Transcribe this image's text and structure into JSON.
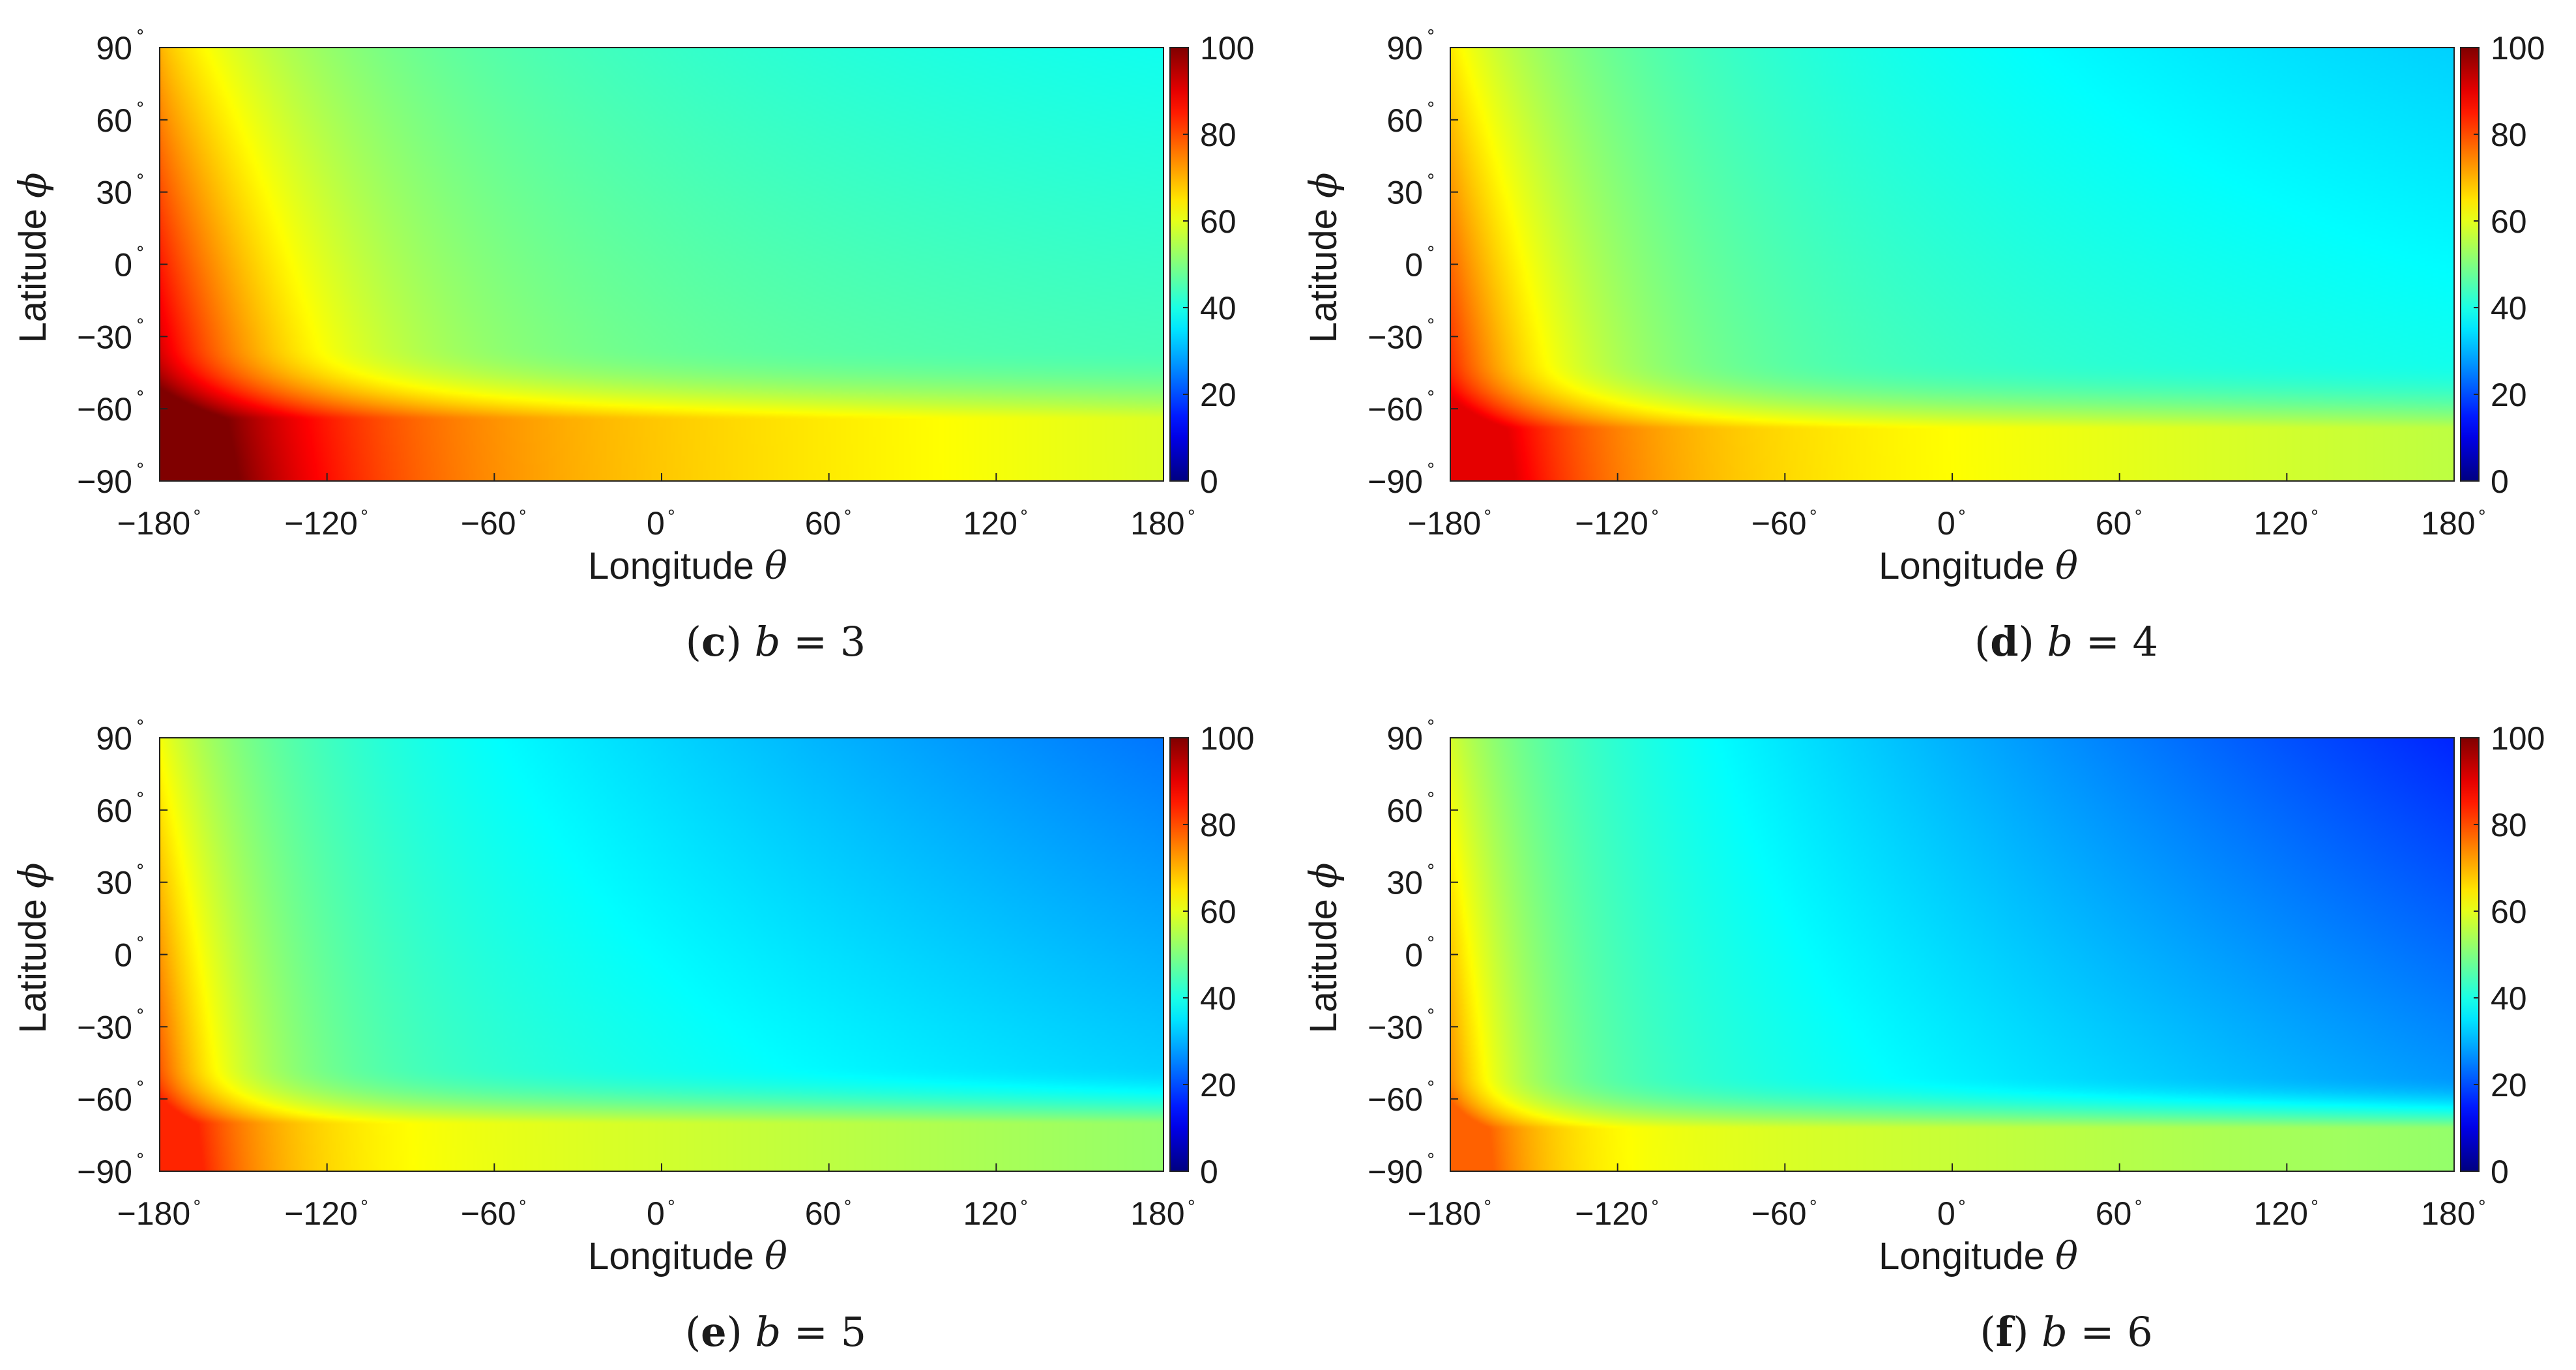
{
  "colormap": "jet",
  "chart_data": [
    {
      "type": "heatmap",
      "panel": "c",
      "caption_letter": "c",
      "caption_var": "b",
      "caption_eq": "= 3",
      "xlabel": "Longitude",
      "xlabel_symbol": "θ",
      "ylabel": "Latitude",
      "ylabel_symbol": "ϕ",
      "xlim": [
        -180,
        180
      ],
      "ylim": [
        -90,
        90
      ],
      "clim": [
        0,
        100
      ],
      "colorbar_ticks": [
        "0",
        "20",
        "40",
        "60",
        "80",
        "100"
      ],
      "field": {
        "min": 39,
        "max": 100,
        "floor": 56,
        "k": 0.33,
        "corner": 100,
        "edge_decay": 50,
        "bottom": 74,
        "band_center": -64,
        "band_width": 30,
        "east_drop": 15
      }
    },
    {
      "type": "heatmap",
      "panel": "d",
      "caption_letter": "d",
      "caption_var": "b",
      "caption_eq": "= 4",
      "xlabel": "Longitude",
      "xlabel_symbol": "θ",
      "ylabel": "Latitude",
      "ylabel_symbol": "ϕ",
      "xlim": [
        -180,
        180
      ],
      "ylim": [
        -90,
        90
      ],
      "clim": [
        0,
        100
      ],
      "colorbar_ticks": [
        "0",
        "20",
        "40",
        "60",
        "80",
        "100"
      ],
      "field": {
        "min": 33,
        "max": 90,
        "floor": 52,
        "k": 0.48,
        "corner": 90,
        "edge_decay": 40,
        "bottom": 68,
        "band_center": -68,
        "band_width": 28,
        "east_drop": 12
      }
    },
    {
      "type": "heatmap",
      "panel": "e",
      "caption_letter": "e",
      "caption_var": "b",
      "caption_eq": "= 5",
      "xlabel": "Longitude",
      "xlabel_symbol": "θ",
      "ylabel": "Latitude",
      "ylabel_symbol": "ϕ",
      "xlim": [
        -180,
        180
      ],
      "ylim": [
        -90,
        90
      ],
      "clim": [
        0,
        100
      ],
      "colorbar_ticks": [
        "0",
        "20",
        "40",
        "60",
        "80",
        "100"
      ],
      "field": {
        "min": 24,
        "max": 84,
        "floor": 50,
        "k": 0.66,
        "corner": 84,
        "edge_decay": 28,
        "bottom": 64,
        "band_center": -70,
        "band_width": 24,
        "east_drop": 12
      }
    },
    {
      "type": "heatmap",
      "panel": "f",
      "caption_letter": "f",
      "caption_var": "b",
      "caption_eq": "= 6",
      "xlabel": "Longitude",
      "xlabel_symbol": "θ",
      "ylabel": "Latitude",
      "ylabel_symbol": "ϕ",
      "xlim": [
        -180,
        180
      ],
      "ylim": [
        -90,
        90
      ],
      "clim": [
        0,
        100
      ],
      "colorbar_ticks": [
        "0",
        "20",
        "40",
        "60",
        "80",
        "100"
      ],
      "field": {
        "min": 16,
        "max": 78,
        "floor": 48,
        "k": 0.82,
        "corner": 78,
        "edge_decay": 24,
        "bottom": 62,
        "band_center": -72,
        "band_width": 22,
        "east_drop": 10
      }
    }
  ],
  "x_ticks": [
    {
      "label": "−180",
      "value": -180
    },
    {
      "label": "−120",
      "value": -120
    },
    {
      "label": "−60",
      "value": -60
    },
    {
      "label": "0",
      "value": 0
    },
    {
      "label": "60",
      "value": 60
    },
    {
      "label": "120",
      "value": 120
    },
    {
      "label": "180",
      "value": 180
    }
  ],
  "y_ticks": [
    {
      "label": "90",
      "value": 90
    },
    {
      "label": "60",
      "value": 60
    },
    {
      "label": "30",
      "value": 30
    },
    {
      "label": "0",
      "value": 0
    },
    {
      "label": "−30",
      "value": -30
    },
    {
      "label": "−60",
      "value": -60
    },
    {
      "label": "−90",
      "value": -90
    }
  ],
  "degree_symbol": "∘"
}
